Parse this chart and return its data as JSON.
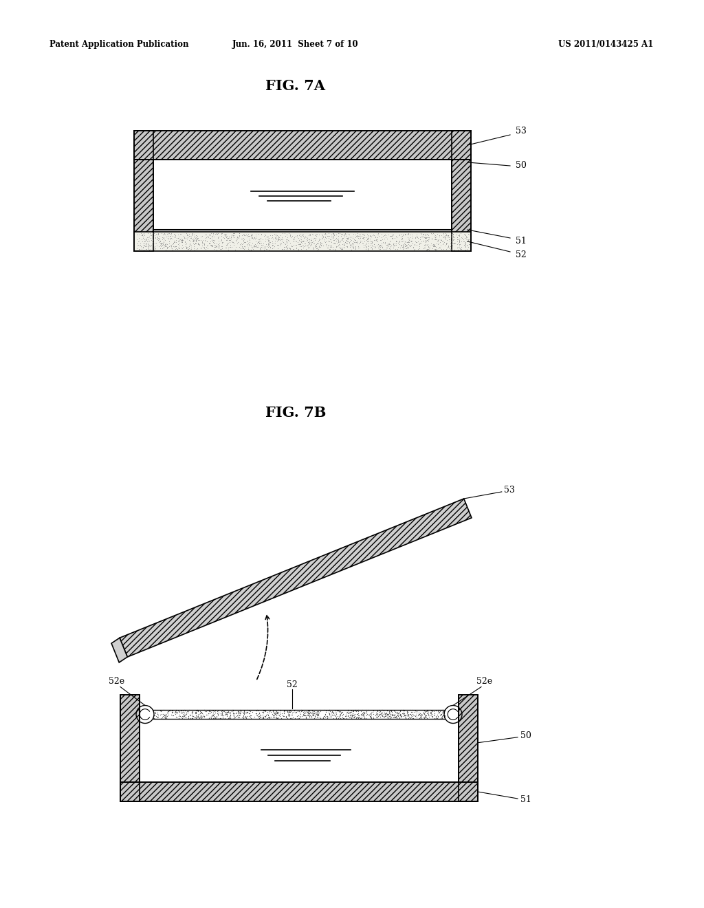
{
  "background_color": "#ffffff",
  "header_left": "Patent Application Publication",
  "header_center": "Jun. 16, 2011  Sheet 7 of 10",
  "header_right": "US 2011/0143425 A1",
  "fig7a_title": "FIG. 7A",
  "fig7b_title": "FIG. 7B"
}
